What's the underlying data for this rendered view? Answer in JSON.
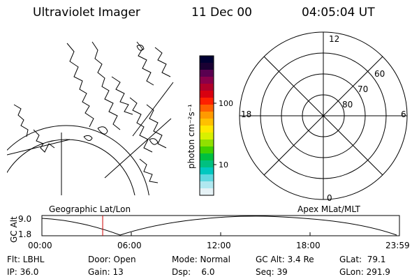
{
  "header": {
    "title": "Ultraviolet Imager",
    "date": "11 Dec 00",
    "time": "04:05:04 UT"
  },
  "colorbar": {
    "unit_label": "photon cm⁻²s⁻¹",
    "tick_100": "100",
    "tick_10": "10",
    "colors": [
      "#000033",
      "#1a0033",
      "#5a0050",
      "#8a004a",
      "#b0002a",
      "#d80010",
      "#ff2000",
      "#ff6000",
      "#ff9a00",
      "#ffc000",
      "#ffe800",
      "#d8f000",
      "#90e000",
      "#40d000",
      "#00c040",
      "#00c080",
      "#00c8c0",
      "#60d8e0",
      "#b0e8f0",
      "#e6f2f6"
    ]
  },
  "polar_plot": {
    "label_12": "12",
    "label_6": "6",
    "label_18": "18",
    "label_0": "0",
    "label_60": "60",
    "label_70": "70",
    "label_80": "80"
  },
  "altitude_plot": {
    "left_title": "Geographic Lat/Lon",
    "right_title": "Apex MLat/MLT",
    "y_axis_label": "GC Alt",
    "y_top": "9.0",
    "y_bottom": "1.8",
    "x_ticks": [
      "00:00",
      "06:00",
      "12:00",
      "18:00",
      "23:59"
    ],
    "marker_hours": 4.08,
    "marker_color": "#cc0000"
  },
  "status": {
    "flt": "Flt: LBHL",
    "ip": "IP: 36.0",
    "door": "Door: Open",
    "gain": "Gain: 13",
    "mode": "Mode: Normal",
    "dsp": "Dsp:    6.0",
    "gc_alt": "GC Alt: 3.4 Re",
    "seq": "Seq: 39",
    "glat": "GLat:  79.1",
    "glon": "GLon: 291.9"
  }
}
